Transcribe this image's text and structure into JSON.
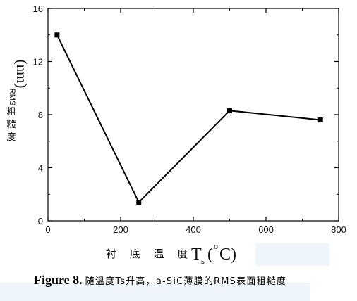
{
  "chart_data": {
    "type": "line",
    "x": [
      25,
      250,
      500,
      750
    ],
    "y": [
      14.0,
      1.4,
      8.3,
      7.6
    ],
    "xlim": [
      0,
      800
    ],
    "ylim": [
      0,
      16
    ],
    "xticks": [
      0,
      200,
      400,
      600,
      800
    ],
    "yticks": [
      0,
      4,
      8,
      12,
      16
    ],
    "grid": false,
    "marker": "square",
    "line_color": "#000000",
    "xlabel": {
      "text": "衬 底 温 度",
      "symbol": "T",
      "subscript": "s",
      "unit_open": "(",
      "unit_sup": "o",
      "unit_close": "C)"
    },
    "ylabel": {
      "unit": "(nm)",
      "prefix": "RMS",
      "chars": [
        "粗",
        "糙",
        "度"
      ]
    }
  },
  "caption": {
    "figure_label": "Figure 8.",
    "text": "随温度Ts升高，a-SiC薄膜的RMS表面粗糙度"
  }
}
